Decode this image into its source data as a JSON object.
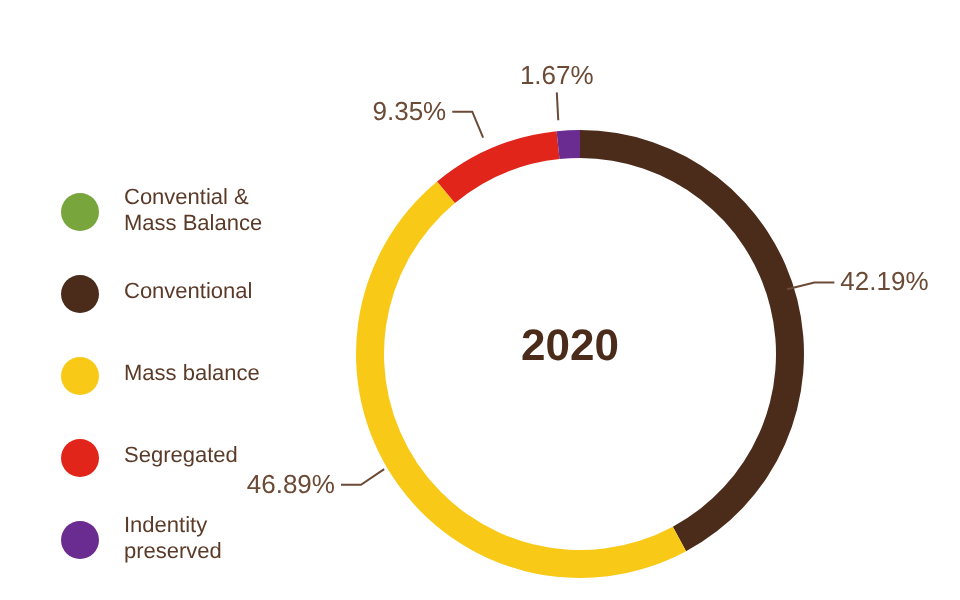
{
  "chart_data": {
    "type": "donut",
    "categories": [
      "Convential & Mass Balance",
      "Conventional",
      "Mass balance",
      "Segregated",
      "Indentity preserved"
    ],
    "values": [
      0,
      42.19,
      46.89,
      9.35,
      1.67
    ],
    "colors": [
      "#78a53c",
      "#4b2c1b",
      "#f8c916",
      "#e1251b",
      "#6b2c91"
    ],
    "value_labels": [
      null,
      "42.19%",
      "46.89%",
      "9.35%",
      "1.67%"
    ],
    "annotations": [
      "2020"
    ],
    "legend": "left"
  }
}
